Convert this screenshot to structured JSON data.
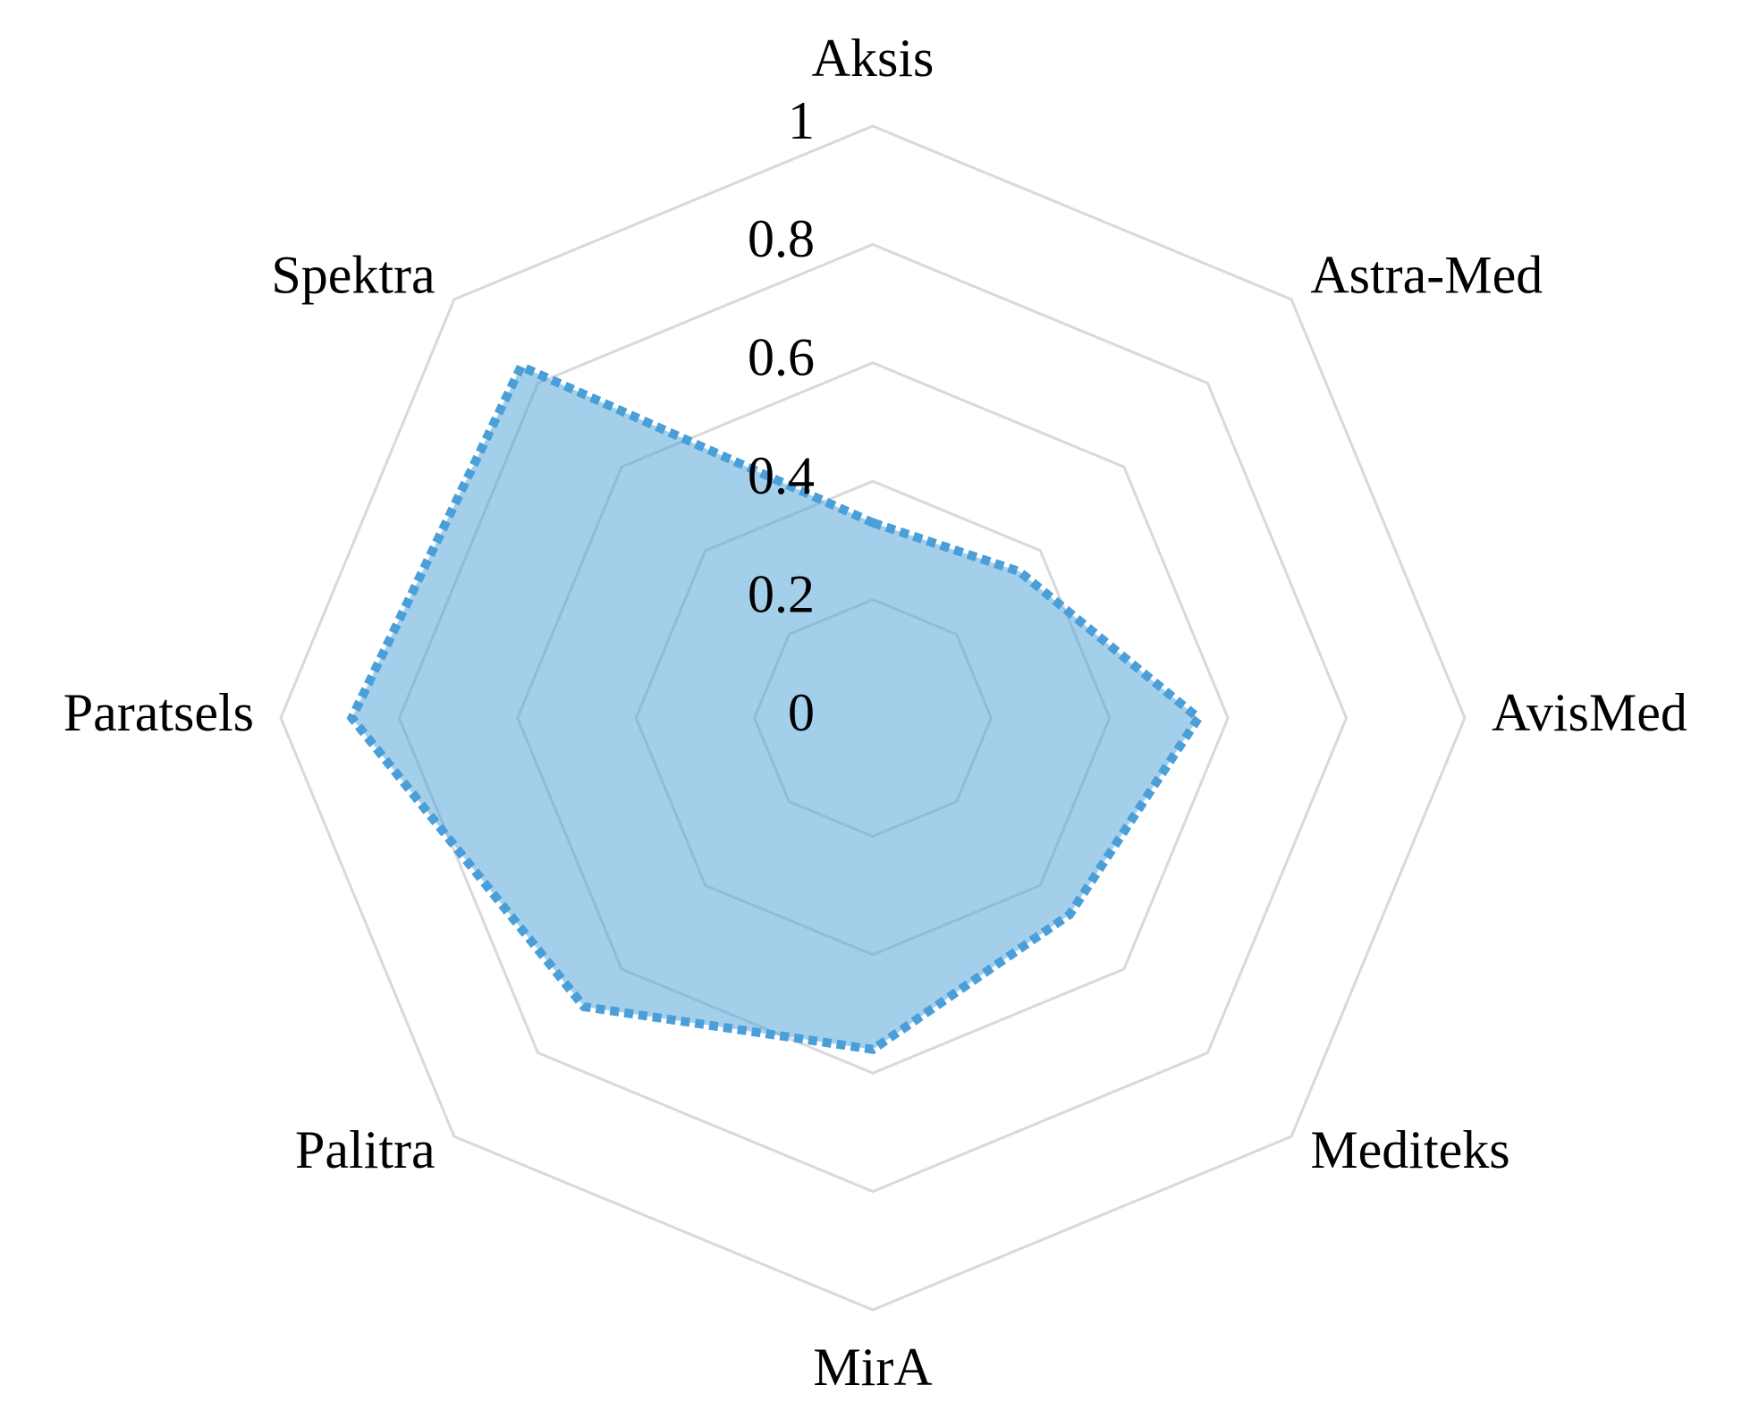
{
  "chart_data": {
    "type": "radar",
    "categories": [
      "Aksis",
      "Astra-Med",
      "AvisMed",
      "Mediteks",
      "MirA",
      "Palitra",
      "Paratsels",
      "Spektra"
    ],
    "series": [
      {
        "values": [
          0.33,
          0.35,
          0.55,
          0.47,
          0.56,
          0.69,
          0.88,
          0.84
        ],
        "color": "#4a9fd8"
      }
    ],
    "rlim": [
      0,
      1
    ],
    "rticks": [
      0,
      0.2,
      0.4,
      0.6,
      0.8,
      1
    ],
    "grid": true
  }
}
